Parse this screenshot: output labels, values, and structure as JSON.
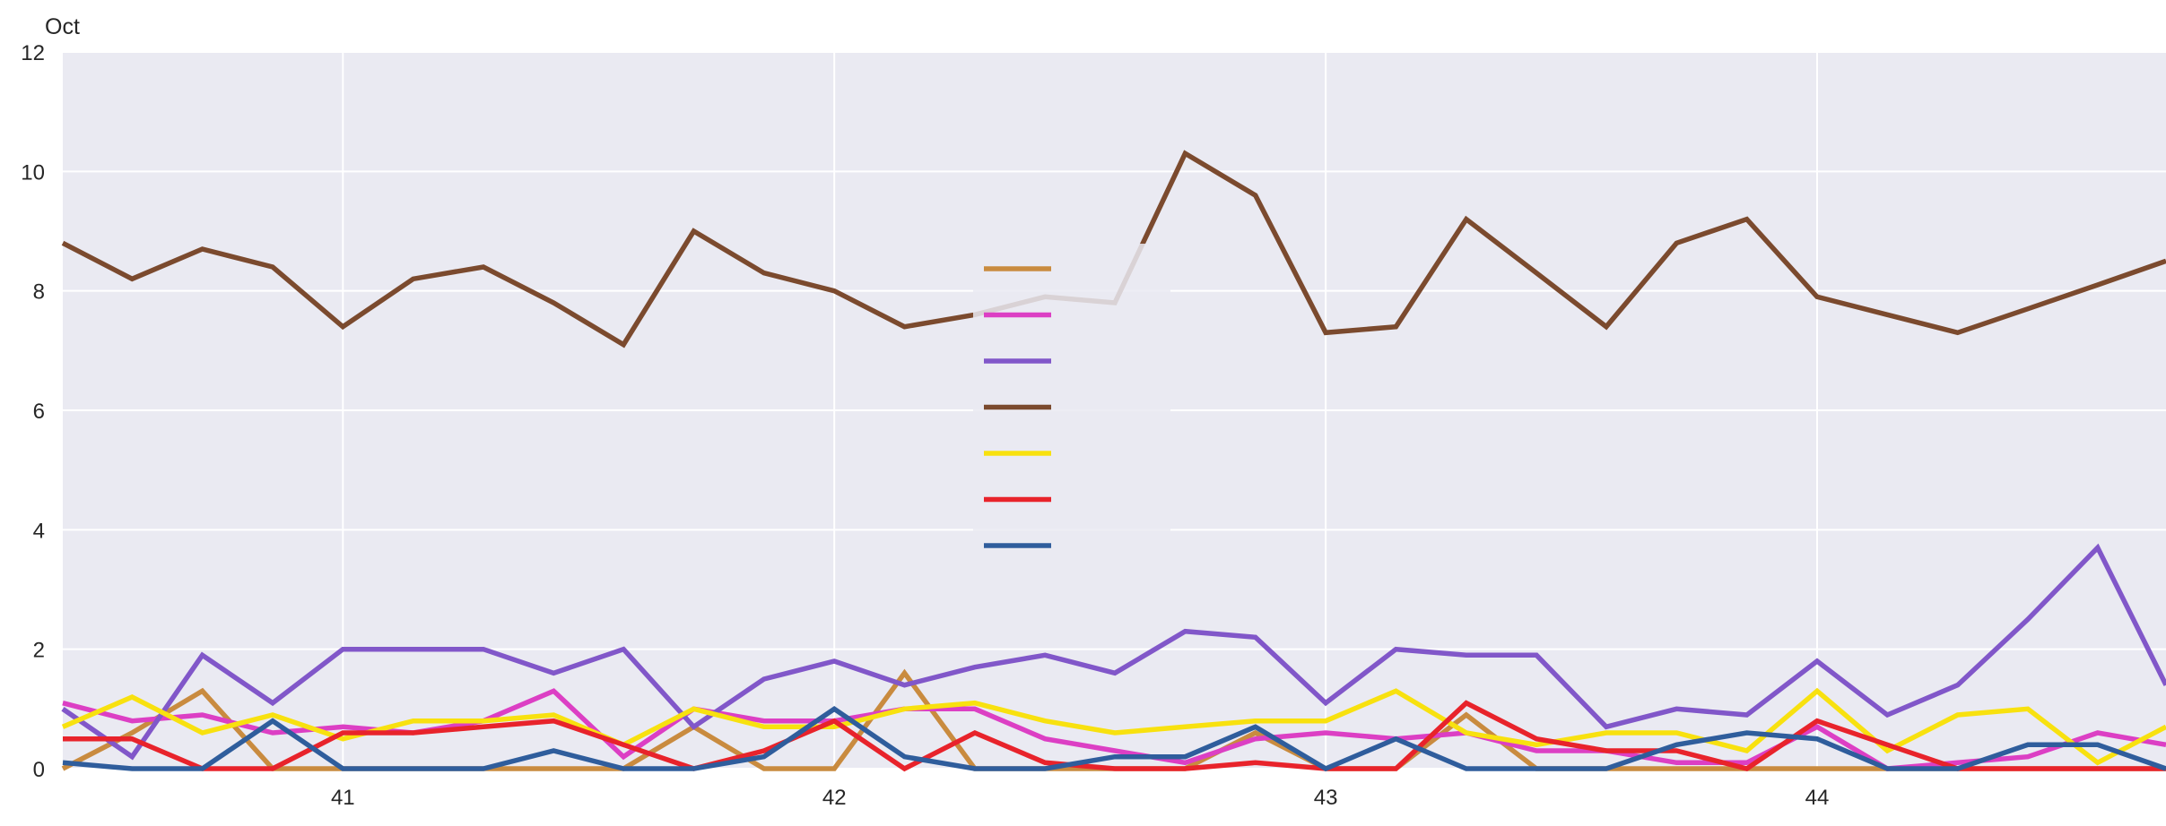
{
  "chart_data": {
    "type": "line",
    "title": "",
    "xlabel": "",
    "ylabel": "",
    "corner_label": "Oct",
    "xlim": [
      40.43,
      44.71
    ],
    "ylim": [
      0,
      12
    ],
    "x_ticks": [
      41,
      42,
      43,
      44
    ],
    "x_tick_labels": [
      "41",
      "42",
      "43",
      "44"
    ],
    "y_ticks": [
      0,
      2,
      4,
      6,
      8,
      10,
      12
    ],
    "y_tick_labels": [
      "0",
      "2",
      "4",
      "6",
      "8",
      "10",
      "12"
    ],
    "grid": true,
    "background": "#eaeaf2",
    "legend": {
      "position": "center",
      "entries_visible": false
    },
    "x": [
      40.43,
      40.571,
      40.714,
      40.857,
      41.0,
      41.143,
      41.286,
      41.429,
      41.571,
      41.714,
      41.857,
      42.0,
      42.143,
      42.286,
      42.429,
      42.571,
      42.714,
      42.857,
      43.0,
      43.143,
      43.286,
      43.429,
      43.571,
      43.714,
      43.857,
      44.0,
      44.143,
      44.286,
      44.429,
      44.571,
      44.71
    ],
    "series": [
      {
        "color": "#c98b3f",
        "values": [
          0.0,
          0.6,
          1.3,
          0.0,
          0.0,
          0.0,
          0.0,
          0.0,
          0.0,
          0.7,
          0.0,
          0.0,
          1.6,
          0.0,
          0.0,
          0.0,
          0.0,
          0.6,
          0.0,
          0.0,
          0.9,
          0.0,
          0.0,
          0.0,
          0.0,
          0.0,
          0.0,
          0.0,
          0.0,
          0.0,
          0.0
        ]
      },
      {
        "color": "#dc3fc4",
        "values": [
          1.1,
          0.8,
          0.9,
          0.6,
          0.7,
          0.6,
          0.8,
          1.3,
          0.2,
          1.0,
          0.8,
          0.8,
          1.0,
          1.0,
          0.5,
          0.3,
          0.1,
          0.5,
          0.6,
          0.5,
          0.6,
          0.3,
          0.3,
          0.1,
          0.1,
          0.7,
          0.0,
          0.1,
          0.2,
          0.6,
          0.4
        ]
      },
      {
        "color": "#8157c9",
        "values": [
          1.0,
          0.2,
          1.9,
          1.1,
          2.0,
          2.0,
          2.0,
          1.6,
          2.0,
          0.7,
          1.5,
          1.8,
          1.4,
          1.7,
          1.9,
          1.6,
          2.3,
          2.2,
          1.1,
          2.0,
          1.9,
          1.9,
          0.7,
          1.0,
          0.9,
          1.8,
          0.9,
          1.4,
          2.5,
          3.7,
          1.4
        ]
      },
      {
        "color": "#7b4a2e",
        "values": [
          8.8,
          8.2,
          8.7,
          8.4,
          7.4,
          8.2,
          8.4,
          7.8,
          7.1,
          9.0,
          8.3,
          8.0,
          7.4,
          7.6,
          7.9,
          7.8,
          10.3,
          9.6,
          7.3,
          7.4,
          9.2,
          8.3,
          7.4,
          8.8,
          9.2,
          7.9,
          7.6,
          7.3,
          7.7,
          8.1,
          8.5
        ]
      },
      {
        "color": "#f8e10f",
        "values": [
          0.7,
          1.2,
          0.6,
          0.9,
          0.5,
          0.8,
          0.8,
          0.9,
          0.4,
          1.0,
          0.7,
          0.7,
          1.0,
          1.1,
          0.8,
          0.6,
          0.7,
          0.8,
          0.8,
          1.3,
          0.6,
          0.4,
          0.6,
          0.6,
          0.3,
          1.3,
          0.3,
          0.9,
          1.0,
          0.1,
          0.7
        ]
      },
      {
        "color": "#e8232b",
        "values": [
          0.5,
          0.5,
          0.0,
          0.0,
          0.6,
          0.6,
          0.7,
          0.8,
          0.4,
          0.0,
          0.3,
          0.8,
          0.0,
          0.6,
          0.1,
          0.0,
          0.0,
          0.1,
          0.0,
          0.0,
          1.1,
          0.5,
          0.3,
          0.3,
          0.0,
          0.8,
          0.4,
          0.0,
          0.0,
          0.0,
          0.0
        ]
      },
      {
        "color": "#2f5d9c",
        "values": [
          0.1,
          0.0,
          0.0,
          0.8,
          0.0,
          0.0,
          0.0,
          0.3,
          0.0,
          0.0,
          0.2,
          1.0,
          0.2,
          0.0,
          0.0,
          0.2,
          0.2,
          0.7,
          0.0,
          0.5,
          0.0,
          0.0,
          0.0,
          0.4,
          0.6,
          0.5,
          0.0,
          0.0,
          0.4,
          0.4,
          0.0
        ]
      }
    ]
  }
}
